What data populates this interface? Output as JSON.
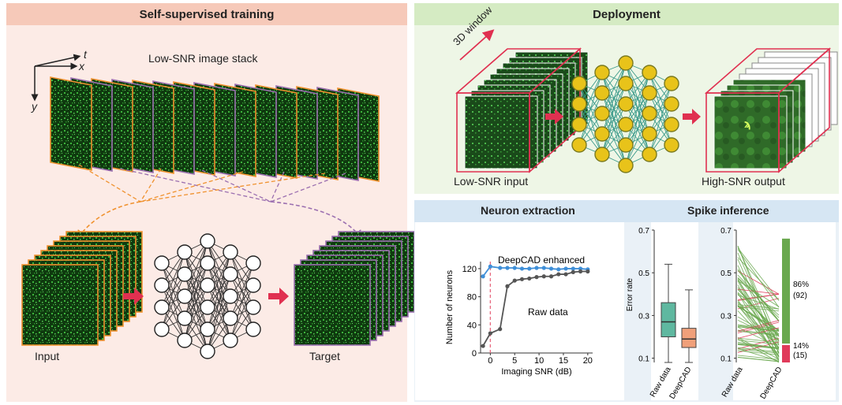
{
  "training": {
    "title": "Self-supervised training",
    "stack_label": "Low-SNR image stack",
    "axis_t": "t",
    "axis_x": "x",
    "axis_y": "y",
    "input_label": "Input",
    "target_label": "Target"
  },
  "deployment": {
    "title": "Deployment",
    "window_label": "3D window",
    "input_label": "Low-SNR input",
    "output_label": "High-SNR output"
  },
  "analysis": {
    "neuron_title": "Neuron extraction",
    "spike_title": "Spike inference"
  },
  "colors": {
    "orange": "#f0922f",
    "purple": "#9b6fb0",
    "red": "#e03050",
    "teal": "#3a9a8a",
    "gold": "#e8c31a",
    "blue": "#3f8fd8",
    "gray": "#555555",
    "green_bar": "#6aa84f",
    "pink_bar": "#e03a5a",
    "box_teal": "#5fb8a0",
    "box_orange": "#f0a07a"
  },
  "chart_data": [
    {
      "type": "line",
      "title": "Neuron extraction",
      "xlabel": "Imaging SNR (dB)",
      "ylabel": "Number of neurons",
      "xlim": [
        -2,
        21
      ],
      "ylim": [
        0,
        130
      ],
      "xticks": [
        "0",
        "5",
        "10",
        "15",
        "20"
      ],
      "yticks": [
        "0",
        "40",
        "80",
        "120"
      ],
      "series": [
        {
          "name": "DeepCAD enhanced",
          "x": [
            -1.5,
            0,
            2,
            3.5,
            5,
            6.5,
            8,
            9.5,
            11,
            12.5,
            14,
            15.5,
            17,
            18.5,
            20
          ],
          "y": [
            109,
            123,
            121,
            121,
            121,
            120,
            120,
            121,
            121,
            120,
            119,
            120,
            120,
            120,
            119
          ]
        },
        {
          "name": "Raw data",
          "x": [
            -1.5,
            0,
            2,
            3.5,
            5,
            6.5,
            8,
            9.5,
            11,
            12.5,
            14,
            15.5,
            17,
            18.5,
            20
          ],
          "y": [
            10,
            28,
            34,
            95,
            103,
            105,
            106,
            108,
            109,
            109,
            112,
            112,
            115,
            116,
            116
          ]
        }
      ]
    },
    {
      "type": "box",
      "title": "Spike inference",
      "ylabel": "Error rate",
      "yticks": [
        "0.1",
        "0.3",
        "0.5",
        "0.7"
      ],
      "categories": [
        "Raw data",
        "DeepCAD"
      ],
      "boxes": [
        {
          "min": 0.08,
          "q1": 0.2,
          "median": 0.27,
          "q3": 0.36,
          "max": 0.54
        },
        {
          "min": 0.08,
          "q1": 0.15,
          "median": 0.19,
          "q3": 0.24,
          "max": 0.42
        }
      ]
    },
    {
      "type": "paired-line",
      "yticks": [
        "0.1",
        "0.3",
        "0.5",
        "0.7"
      ],
      "categories": [
        "Raw data",
        "DeepCAD"
      ],
      "improved_label": "86%",
      "improved_count": "(92)",
      "worse_label": "14%",
      "worse_count": "(15)",
      "improved_fraction": 0.86,
      "worse_fraction": 0.14
    }
  ]
}
